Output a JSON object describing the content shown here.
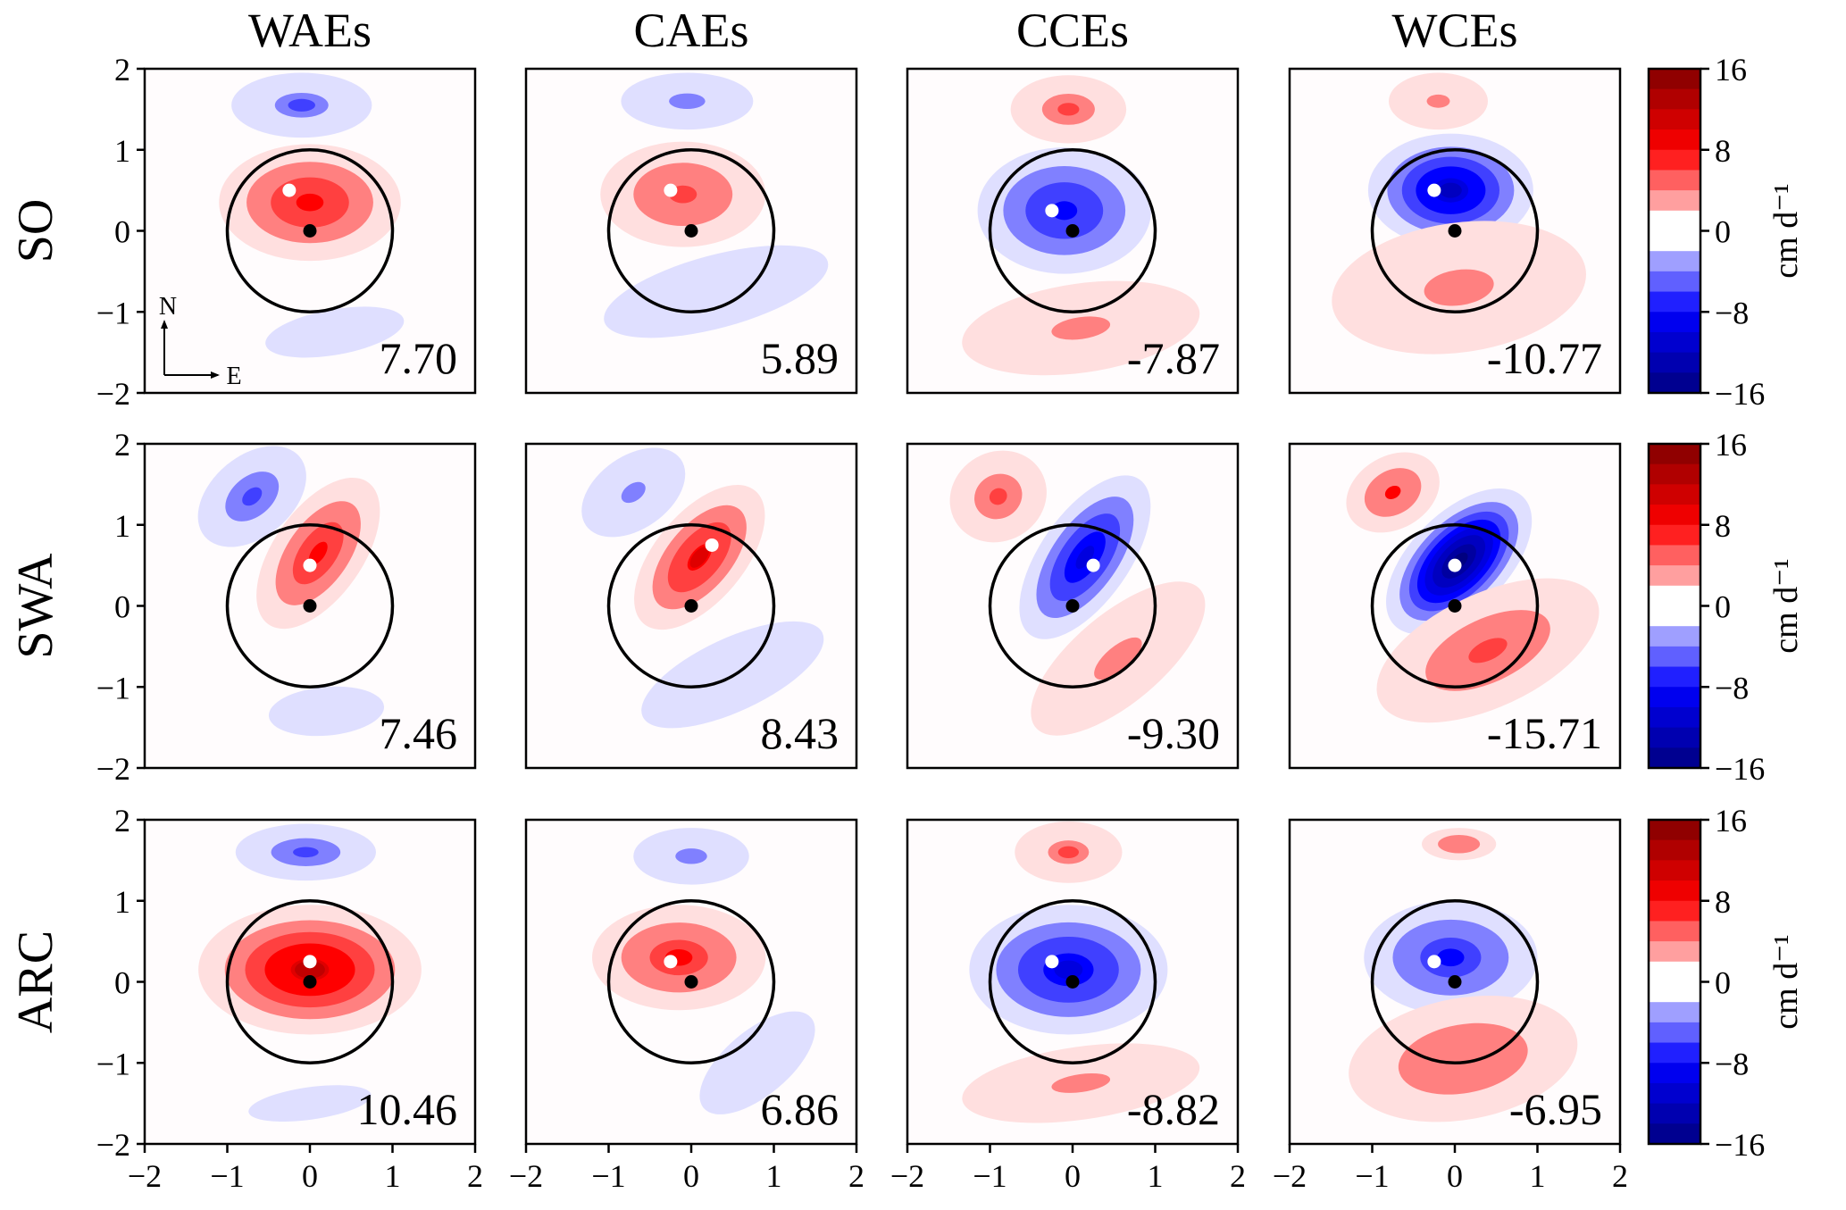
{
  "chart_data": {
    "type": "heatmap",
    "subtype": "filled-contour-grid",
    "columns": [
      "WAEs",
      "CAEs",
      "CCEs",
      "WCEs"
    ],
    "rows": [
      "SO",
      "SWA",
      "ARC"
    ],
    "xlim": [
      -2,
      2
    ],
    "ylim": [
      -2,
      2
    ],
    "x_ticks": [
      "−2",
      "−1",
      "0",
      "1",
      "2"
    ],
    "y_ticks": [
      "2",
      "1",
      "0",
      "−1",
      "−2"
    ],
    "colorbar": {
      "label": "cm d⁻¹",
      "range": [
        -16,
        16
      ],
      "ticks": [
        "16",
        "8",
        "0",
        "−8",
        "−16"
      ],
      "contour_step": 2,
      "colormap": "seismic"
    },
    "compass": {
      "north": "N",
      "east": "E"
    },
    "eddy_circle_radius": 1,
    "center_marker": [
      0,
      0
    ],
    "panels": [
      [
        {
          "value": "7.70",
          "max_point": [
            -0.25,
            0.5
          ],
          "blobs": [
            {
              "cx": 0.0,
              "cy": 0.35,
              "rx": 1.1,
              "ry": 0.72,
              "rot": 0,
              "amp": 7.7
            },
            {
              "cx": -0.1,
              "cy": 1.55,
              "rx": 0.85,
              "ry": 0.4,
              "rot": 0,
              "amp": -4.5
            },
            {
              "cx": 0.3,
              "cy": -1.25,
              "rx": 0.85,
              "ry": 0.28,
              "rot": -10,
              "amp": -1.5
            }
          ]
        },
        {
          "value": "5.89",
          "max_point": [
            -0.25,
            0.5
          ],
          "blobs": [
            {
              "cx": -0.1,
              "cy": 0.45,
              "rx": 1.0,
              "ry": 0.65,
              "rot": 0,
              "amp": 5.9
            },
            {
              "cx": -0.05,
              "cy": 1.6,
              "rx": 0.8,
              "ry": 0.35,
              "rot": 0,
              "amp": -3.0
            },
            {
              "cx": 0.3,
              "cy": -0.75,
              "rx": 1.4,
              "ry": 0.45,
              "rot": -15,
              "amp": -1.8
            }
          ]
        },
        {
          "value": "-7.87",
          "max_point": [
            -0.25,
            0.25
          ],
          "blobs": [
            {
              "cx": -0.1,
              "cy": 0.25,
              "rx": 1.05,
              "ry": 0.78,
              "rot": 0,
              "amp": -7.9
            },
            {
              "cx": -0.05,
              "cy": 1.5,
              "rx": 0.7,
              "ry": 0.42,
              "rot": 0,
              "amp": 4.8
            },
            {
              "cx": 0.1,
              "cy": -1.2,
              "rx": 1.45,
              "ry": 0.55,
              "rot": -8,
              "amp": 2.0
            }
          ]
        },
        {
          "value": "-10.77",
          "max_point": [
            -0.25,
            0.5
          ],
          "blobs": [
            {
              "cx": -0.05,
              "cy": 0.5,
              "rx": 1.0,
              "ry": 0.7,
              "rot": 0,
              "amp": -10.8
            },
            {
              "cx": -0.2,
              "cy": 1.6,
              "rx": 0.6,
              "ry": 0.35,
              "rot": 0,
              "amp": 3.5
            },
            {
              "cx": 0.05,
              "cy": -0.7,
              "rx": 1.55,
              "ry": 0.8,
              "rot": -8,
              "amp": 3.0
            }
          ]
        }
      ],
      [
        {
          "value": "7.46",
          "max_point": [
            0.0,
            0.5
          ],
          "blobs": [
            {
              "cx": 0.1,
              "cy": 0.65,
              "rx": 1.05,
              "ry": 0.55,
              "rot": -55,
              "amp": 7.5
            },
            {
              "cx": -0.7,
              "cy": 1.35,
              "rx": 0.75,
              "ry": 0.5,
              "rot": -40,
              "amp": -5.0
            },
            {
              "cx": 0.2,
              "cy": -1.3,
              "rx": 0.7,
              "ry": 0.3,
              "rot": -5,
              "amp": -1.6
            }
          ]
        },
        {
          "value": "8.43",
          "max_point": [
            0.25,
            0.75
          ],
          "blobs": [
            {
              "cx": 0.1,
              "cy": 0.6,
              "rx": 1.05,
              "ry": 0.55,
              "rot": -50,
              "amp": 8.4
            },
            {
              "cx": -0.7,
              "cy": 1.4,
              "rx": 0.7,
              "ry": 0.45,
              "rot": -35,
              "amp": -3.5
            },
            {
              "cx": 0.5,
              "cy": -0.85,
              "rx": 1.2,
              "ry": 0.45,
              "rot": -25,
              "amp": -1.8
            }
          ]
        },
        {
          "value": "-9.30",
          "max_point": [
            0.25,
            0.5
          ],
          "blobs": [
            {
              "cx": 0.15,
              "cy": 0.6,
              "rx": 1.15,
              "ry": 0.55,
              "rot": -55,
              "amp": -9.3
            },
            {
              "cx": -0.9,
              "cy": 1.35,
              "rx": 0.6,
              "ry": 0.55,
              "rot": -30,
              "amp": 5.0
            },
            {
              "cx": 0.55,
              "cy": -0.65,
              "rx": 1.3,
              "ry": 0.55,
              "rot": -40,
              "amp": 3.0
            }
          ]
        },
        {
          "value": "-15.71",
          "max_point": [
            0.0,
            0.5
          ],
          "blobs": [
            {
              "cx": 0.05,
              "cy": 0.55,
              "rx": 1.1,
              "ry": 0.6,
              "rot": -45,
              "amp": -15.7
            },
            {
              "cx": -0.75,
              "cy": 1.4,
              "rx": 0.6,
              "ry": 0.45,
              "rot": -30,
              "amp": 6.0
            },
            {
              "cx": 0.4,
              "cy": -0.55,
              "rx": 1.45,
              "ry": 0.7,
              "rot": -25,
              "amp": 5.5
            }
          ]
        }
      ],
      [
        {
          "value": "10.46",
          "max_point": [
            0.0,
            0.25
          ],
          "blobs": [
            {
              "cx": 0.0,
              "cy": 0.15,
              "rx": 1.35,
              "ry": 0.8,
              "rot": 0,
              "amp": 10.5
            },
            {
              "cx": -0.05,
              "cy": 1.6,
              "rx": 0.85,
              "ry": 0.35,
              "rot": 0,
              "amp": -5.0
            },
            {
              "cx": 0.0,
              "cy": -1.5,
              "rx": 0.75,
              "ry": 0.2,
              "rot": -8,
              "amp": -1.4
            }
          ]
        },
        {
          "value": "6.86",
          "max_point": [
            -0.25,
            0.25
          ],
          "blobs": [
            {
              "cx": -0.15,
              "cy": 0.3,
              "rx": 1.05,
              "ry": 0.65,
              "rot": 0,
              "amp": 6.9
            },
            {
              "cx": 0.0,
              "cy": 1.55,
              "rx": 0.7,
              "ry": 0.35,
              "rot": 0,
              "amp": -3.0
            },
            {
              "cx": 0.8,
              "cy": -1.0,
              "rx": 0.85,
              "ry": 0.4,
              "rot": -40,
              "amp": -1.8
            }
          ]
        },
        {
          "value": "-8.82",
          "max_point": [
            -0.25,
            0.25
          ],
          "blobs": [
            {
              "cx": -0.05,
              "cy": 0.15,
              "rx": 1.2,
              "ry": 0.8,
              "rot": 0,
              "amp": -8.8
            },
            {
              "cx": -0.05,
              "cy": 1.6,
              "rx": 0.65,
              "ry": 0.38,
              "rot": 0,
              "amp": 4.5
            },
            {
              "cx": 0.1,
              "cy": -1.25,
              "rx": 1.45,
              "ry": 0.45,
              "rot": -8,
              "amp": 2.0
            }
          ]
        },
        {
          "value": "-6.95",
          "max_point": [
            -0.25,
            0.25
          ],
          "blobs": [
            {
              "cx": -0.05,
              "cy": 0.3,
              "rx": 1.05,
              "ry": 0.7,
              "rot": 0,
              "amp": -7.0
            },
            {
              "cx": 0.05,
              "cy": 1.7,
              "rx": 0.45,
              "ry": 0.2,
              "rot": 0,
              "amp": 2.2
            },
            {
              "cx": 0.1,
              "cy": -0.95,
              "rx": 1.4,
              "ry": 0.75,
              "rot": -10,
              "amp": 2.2
            }
          ]
        }
      ]
    ]
  }
}
